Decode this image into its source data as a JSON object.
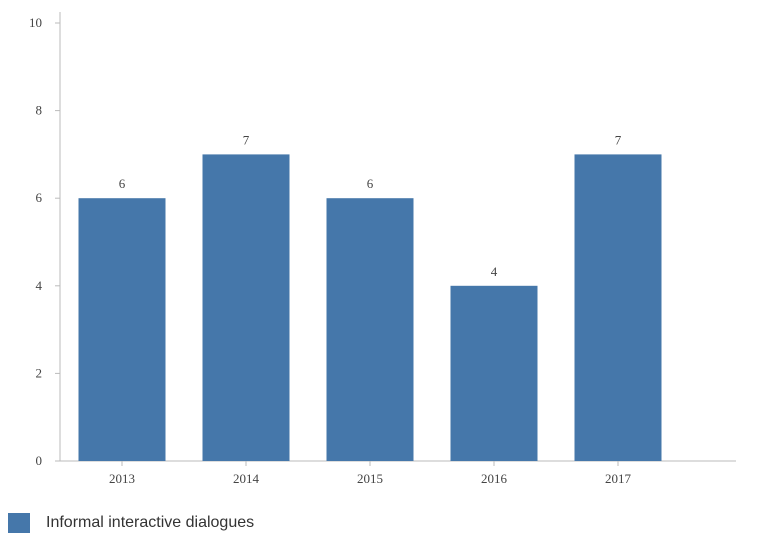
{
  "chart_data": {
    "type": "bar",
    "categories": [
      "2013",
      "2014",
      "2015",
      "2016",
      "2017"
    ],
    "series": [
      {
        "name": "Informal interactive dialogues",
        "values": [
          6,
          7,
          6,
          4,
          7
        ],
        "color": "#4577aa"
      }
    ],
    "data_labels": [
      "6",
      "7",
      "6",
      "4",
      "7"
    ],
    "y_ticks": [
      "0",
      "2",
      "4",
      "6",
      "8",
      "10"
    ],
    "ylim": [
      0,
      10
    ],
    "legend_position": "bottom-left",
    "grid": false
  },
  "colors": {
    "bar": "#4577aa",
    "axis": "#bbbbbb",
    "text": "#444444"
  }
}
